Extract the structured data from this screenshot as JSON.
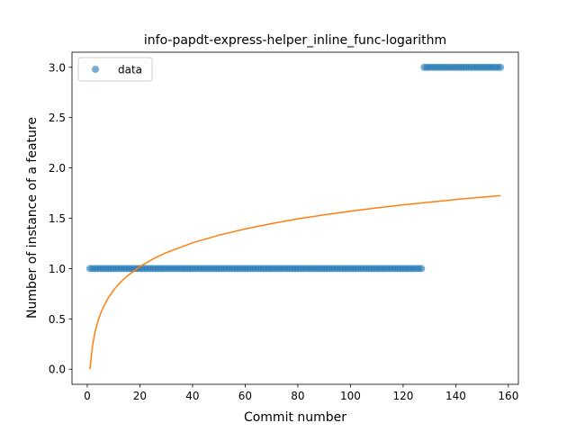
{
  "chart_data": {
    "type": "scatter",
    "title": "info-papdt-express-helper_inline_func-logarithm",
    "xlabel": "Commit number",
    "ylabel": "Number of instance of a feature",
    "xlim": [
      -5.8,
      163.8
    ],
    "ylim": [
      -0.15,
      3.15
    ],
    "xticks": [
      0,
      20,
      40,
      60,
      80,
      100,
      120,
      140,
      160
    ],
    "yticks": [
      0.0,
      0.5,
      1.0,
      1.5,
      2.0,
      2.5,
      3.0
    ],
    "xtick_labels": [
      "0",
      "20",
      "40",
      "60",
      "80",
      "100",
      "120",
      "140",
      "160"
    ],
    "ytick_labels": [
      "0.0",
      "0.5",
      "1.0",
      "1.5",
      "2.0",
      "2.5",
      "3.0"
    ],
    "legend": {
      "entries": [
        "data"
      ],
      "placement": "upper-left"
    },
    "colors": {
      "data": "#1f77b4",
      "fit": "#ff7f0e"
    },
    "series": [
      {
        "name": "data",
        "kind": "scatter",
        "segments": [
          {
            "x_start": 1,
            "x_end": 127,
            "y": 1
          },
          {
            "x_start": 128,
            "x_end": 157,
            "y": 3
          }
        ]
      },
      {
        "kind": "line",
        "x": [
          1,
          2,
          3,
          4,
          5,
          6,
          8,
          10,
          12,
          15,
          20,
          25,
          30,
          40,
          50,
          60,
          70,
          80,
          90,
          100,
          110,
          120,
          130,
          140,
          150,
          157
        ],
        "y": [
          0.0,
          0.236,
          0.374,
          0.473,
          0.549,
          0.611,
          0.709,
          0.785,
          0.848,
          0.922,
          1.02,
          1.096,
          1.158,
          1.256,
          1.332,
          1.394,
          1.446,
          1.494,
          1.534,
          1.57,
          1.603,
          1.633,
          1.66,
          1.686,
          1.709,
          1.725
        ]
      }
    ]
  }
}
